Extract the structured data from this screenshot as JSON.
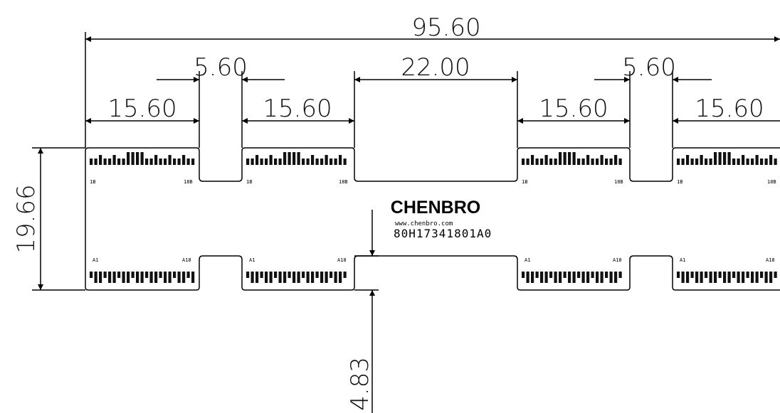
{
  "dimensions": {
    "overall_width": "95.60",
    "slot_left": "5.60",
    "center_notch": "22.00",
    "slot_right": "5.60",
    "segment_1": "15.60",
    "segment_2": "15.60",
    "segment_3": "15.60",
    "segment_4": "15.60",
    "height": "19.66",
    "notch_depth": "4.83"
  },
  "logo": {
    "brand": "CHENBRO",
    "url": "www.chenbro.com",
    "part_number": "80H17341801A0"
  },
  "pin_labels": {
    "top": [
      "1B",
      "18B"
    ],
    "bottom": [
      "A1",
      "A18"
    ]
  }
}
